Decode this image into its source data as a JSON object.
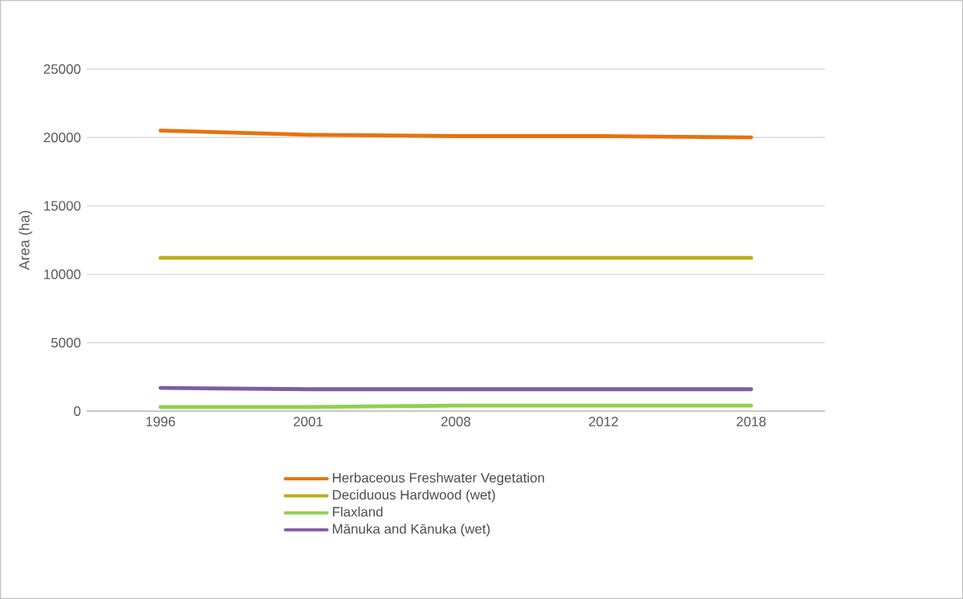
{
  "chart_data": {
    "type": "line",
    "ylabel": "Area (ha)",
    "categories": [
      "1996",
      "2001",
      "2008",
      "2012",
      "2018"
    ],
    "series": [
      {
        "name": "Herbaceous Freshwater Vegetation",
        "color": "#e8720c",
        "values": [
          20500,
          20200,
          20100,
          20100,
          20000
        ]
      },
      {
        "name": "Deciduous Hardwood (wet)",
        "color": "#b8b01a",
        "values": [
          11200,
          11200,
          11200,
          11200,
          11200
        ]
      },
      {
        "name": "Flaxland",
        "color": "#8fd14f",
        "values": [
          300,
          300,
          400,
          400,
          400
        ]
      },
      {
        "name": "Mānuka and Kānuka (wet)",
        "color": "#7e5ca8",
        "values": [
          1700,
          1600,
          1600,
          1600,
          1600
        ]
      }
    ],
    "ylim": [
      0,
      25000
    ],
    "yticks": [
      0,
      5000,
      10000,
      15000,
      20000,
      25000
    ],
    "grid": "y",
    "legend": "bottom",
    "marker": "none",
    "line_style": "solid"
  }
}
